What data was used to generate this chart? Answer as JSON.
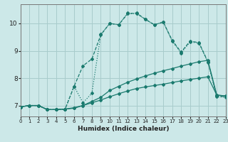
{
  "xlabel": "Humidex (Indice chaleur)",
  "xlim": [
    0,
    23
  ],
  "ylim": [
    6.6,
    10.7
  ],
  "xticks": [
    0,
    1,
    2,
    3,
    4,
    5,
    6,
    7,
    8,
    9,
    10,
    11,
    12,
    13,
    14,
    15,
    16,
    17,
    18,
    19,
    20,
    21,
    22,
    23
  ],
  "yticks": [
    7,
    8,
    9,
    10
  ],
  "bg_color": "#cce8e8",
  "line_color": "#1a7a6e",
  "grid_color": "#a8cccc",
  "lines": [
    {
      "x": [
        0,
        1,
        2,
        3,
        4,
        5,
        6,
        7,
        8,
        9,
        10,
        11,
        12,
        13,
        14,
        15,
        16,
        17,
        18,
        19,
        20,
        21,
        22,
        23
      ],
      "y": [
        6.95,
        7.0,
        7.0,
        6.85,
        6.85,
        6.87,
        6.9,
        7.0,
        7.1,
        7.2,
        7.32,
        7.43,
        7.53,
        7.62,
        7.68,
        7.73,
        7.78,
        7.84,
        7.9,
        7.95,
        8.0,
        8.05,
        7.38,
        7.35
      ],
      "linestyle": "-",
      "marker": "D",
      "markersize": 2.0,
      "linewidth": 0.9
    },
    {
      "x": [
        0,
        1,
        2,
        3,
        4,
        5,
        6,
        7,
        8,
        9,
        10,
        11,
        12,
        13,
        14,
        15,
        16,
        17,
        18,
        19,
        20,
        21,
        22,
        23
      ],
      "y": [
        6.95,
        7.0,
        7.0,
        6.85,
        6.85,
        6.87,
        6.92,
        7.0,
        7.15,
        7.3,
        7.55,
        7.7,
        7.85,
        7.97,
        8.08,
        8.18,
        8.27,
        8.35,
        8.44,
        8.52,
        8.6,
        8.65,
        7.38,
        7.35
      ],
      "linestyle": "-",
      "marker": "D",
      "markersize": 2.0,
      "linewidth": 0.9
    },
    {
      "x": [
        0,
        1,
        2,
        3,
        4,
        5,
        6,
        7,
        8,
        9,
        10,
        11,
        12,
        13,
        14,
        15,
        16,
        17,
        18,
        19,
        20,
        21,
        22,
        23
      ],
      "y": [
        6.95,
        7.0,
        7.0,
        6.85,
        6.85,
        6.87,
        7.7,
        8.45,
        8.7,
        9.58,
        10.0,
        9.95,
        10.35,
        10.38,
        10.15,
        9.95,
        10.05,
        9.38,
        8.95,
        9.35,
        9.3,
        8.6,
        7.35,
        7.32
      ],
      "linestyle": "--",
      "marker": "D",
      "markersize": 2.0,
      "linewidth": 0.9
    },
    {
      "x": [
        0,
        1,
        2,
        3,
        4,
        5,
        6,
        7,
        8,
        9,
        10,
        11,
        12,
        13,
        14,
        15,
        16,
        17,
        18,
        19,
        20,
        21,
        22,
        23
      ],
      "y": [
        6.95,
        7.0,
        7.0,
        6.85,
        6.85,
        6.87,
        7.7,
        7.1,
        7.45,
        9.6,
        10.0,
        9.95,
        10.38,
        10.35,
        10.15,
        9.95,
        10.05,
        9.35,
        8.92,
        9.32,
        9.28,
        8.58,
        7.32,
        7.3
      ],
      "linestyle": ":",
      "marker": "D",
      "markersize": 2.0,
      "linewidth": 0.9
    }
  ]
}
